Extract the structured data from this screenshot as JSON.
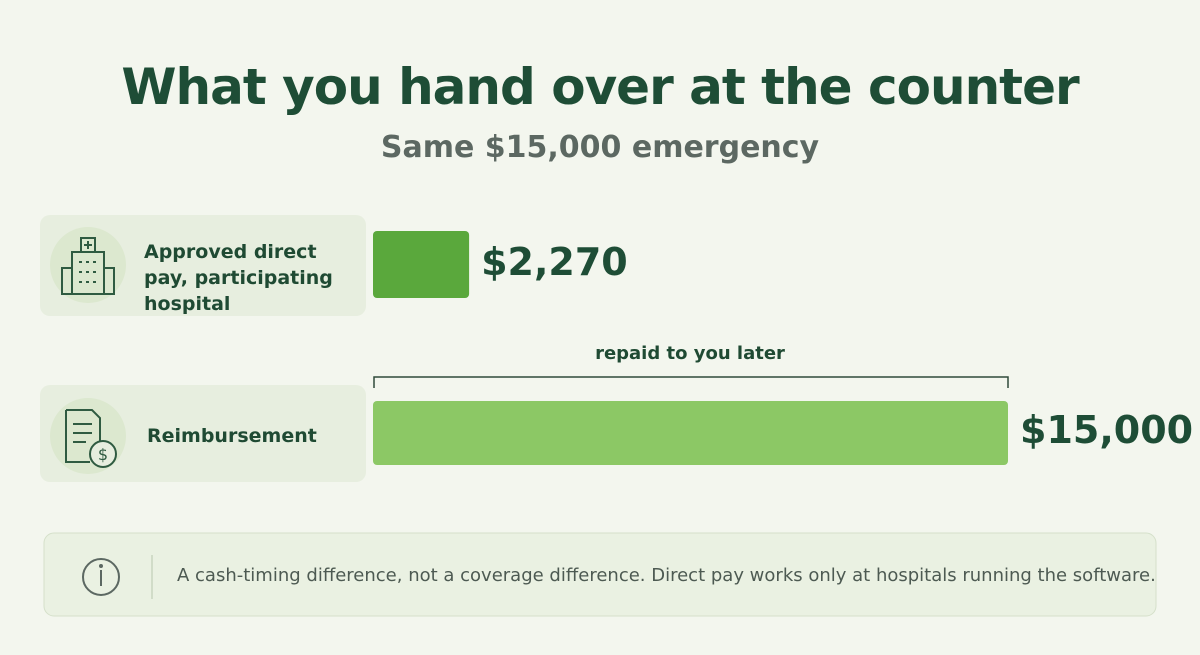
{
  "chart_data": {
    "type": "bar",
    "orientation": "horizontal",
    "title": "What you hand over at the counter",
    "subtitle": "Same $15,000 emergency",
    "categories": [
      "Approved direct pay, participating hospital",
      "Reimbursement"
    ],
    "values": [
      2270,
      15000
    ],
    "value_labels": [
      "$2,270",
      "$15,000"
    ],
    "colors": [
      "#5aa83c",
      "#8cc865"
    ],
    "annotation": "repaid to you later",
    "note": "A cash-timing difference, not a coverage difference. Direct pay works only at hospitals running the software."
  }
}
